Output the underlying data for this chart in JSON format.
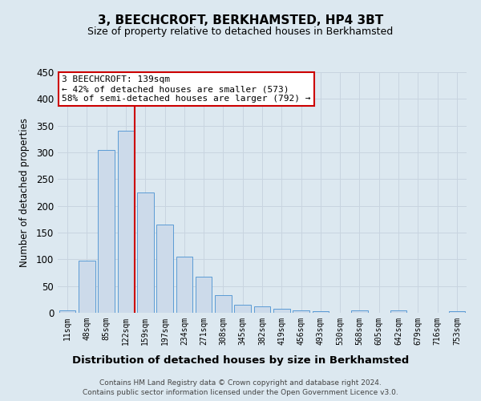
{
  "title": "3, BEECHCROFT, BERKHAMSTED, HP4 3BT",
  "subtitle": "Size of property relative to detached houses in Berkhamsted",
  "xlabel": "Distribution of detached houses by size in Berkhamsted",
  "ylabel": "Number of detached properties",
  "footer_line1": "Contains HM Land Registry data © Crown copyright and database right 2024.",
  "footer_line2": "Contains public sector information licensed under the Open Government Licence v3.0.",
  "bar_labels": [
    "11sqm",
    "48sqm",
    "85sqm",
    "122sqm",
    "159sqm",
    "197sqm",
    "234sqm",
    "271sqm",
    "308sqm",
    "345sqm",
    "382sqm",
    "419sqm",
    "456sqm",
    "493sqm",
    "530sqm",
    "568sqm",
    "605sqm",
    "642sqm",
    "679sqm",
    "716sqm",
    "753sqm"
  ],
  "bar_values": [
    5,
    97,
    305,
    340,
    225,
    165,
    105,
    68,
    33,
    15,
    12,
    7,
    4,
    3,
    0,
    4,
    0,
    4,
    0,
    0,
    3
  ],
  "bar_color": "#ccdaea",
  "bar_edge_color": "#5b9bd5",
  "annotation_line_color": "#cc0000",
  "annotation_box_text": "3 BEECHCROFT: 139sqm\n← 42% of detached houses are smaller (573)\n58% of semi-detached houses are larger (792) →",
  "annotation_box_color": "#ffffff",
  "annotation_box_edge_color": "#cc0000",
  "ylim": [
    0,
    450
  ],
  "yticks": [
    0,
    50,
    100,
    150,
    200,
    250,
    300,
    350,
    400,
    450
  ],
  "grid_color": "#c8d4e0",
  "figure_bg_color": "#dce8f0",
  "plot_bg_color": "#dce8f0"
}
